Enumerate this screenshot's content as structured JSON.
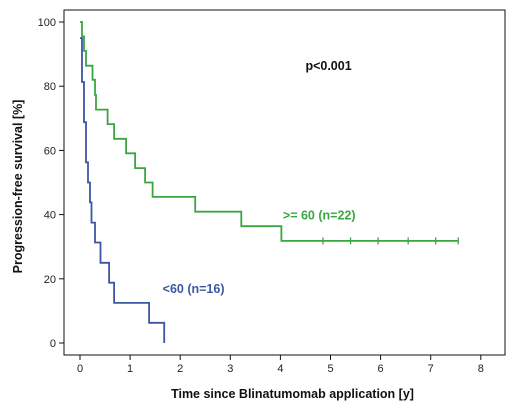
{
  "chart_data": {
    "type": "line",
    "title": "",
    "xlabel": "Time since Blinatumomab application [y]",
    "ylabel": "Progression-free survival [%]",
    "xlim": [
      0,
      8
    ],
    "ylim": [
      0,
      100
    ],
    "x_ticks": [
      0,
      1,
      2,
      3,
      4,
      5,
      6,
      7,
      8
    ],
    "y_ticks": [
      0,
      20,
      40,
      60,
      80,
      100
    ],
    "grid": false,
    "annotations": [
      {
        "name": "p-value-annotation",
        "text": "p<0.001",
        "x": 4.5,
        "y": 85,
        "color": "#111111"
      }
    ],
    "series": [
      {
        "name": ">= 60 (n=22)",
        "color": "#3aa640",
        "label_x": 4.05,
        "label_y": 38.5,
        "steps": [
          [
            0,
            100
          ],
          [
            0.04,
            95.5
          ],
          [
            0.08,
            91
          ],
          [
            0.12,
            86.4
          ],
          [
            0.25,
            82
          ],
          [
            0.3,
            77.3
          ],
          [
            0.32,
            72.7
          ],
          [
            0.55,
            68.2
          ],
          [
            0.68,
            63.6
          ],
          [
            0.92,
            59.1
          ],
          [
            1.1,
            54.5
          ],
          [
            1.3,
            50
          ],
          [
            1.45,
            45.5
          ],
          [
            2.3,
            40.9
          ],
          [
            3.22,
            36.4
          ],
          [
            4.02,
            31.8
          ],
          [
            7.55,
            31.8
          ]
        ],
        "censored": [
          4.85,
          5.4,
          5.95,
          6.55,
          7.1,
          7.55
        ]
      },
      {
        "name": "<60 (n=16)",
        "color": "#3d56a3",
        "label_x": 1.65,
        "label_y": 15.5,
        "steps": [
          [
            0,
            95
          ],
          [
            0.04,
            81.3
          ],
          [
            0.08,
            68.8
          ],
          [
            0.12,
            56.3
          ],
          [
            0.16,
            50
          ],
          [
            0.2,
            43.8
          ],
          [
            0.23,
            37.5
          ],
          [
            0.3,
            31.3
          ],
          [
            0.41,
            25
          ],
          [
            0.58,
            18.8
          ],
          [
            0.68,
            12.5
          ],
          [
            1.38,
            6.3
          ],
          [
            1.68,
            0
          ]
        ],
        "censored": []
      }
    ]
  }
}
